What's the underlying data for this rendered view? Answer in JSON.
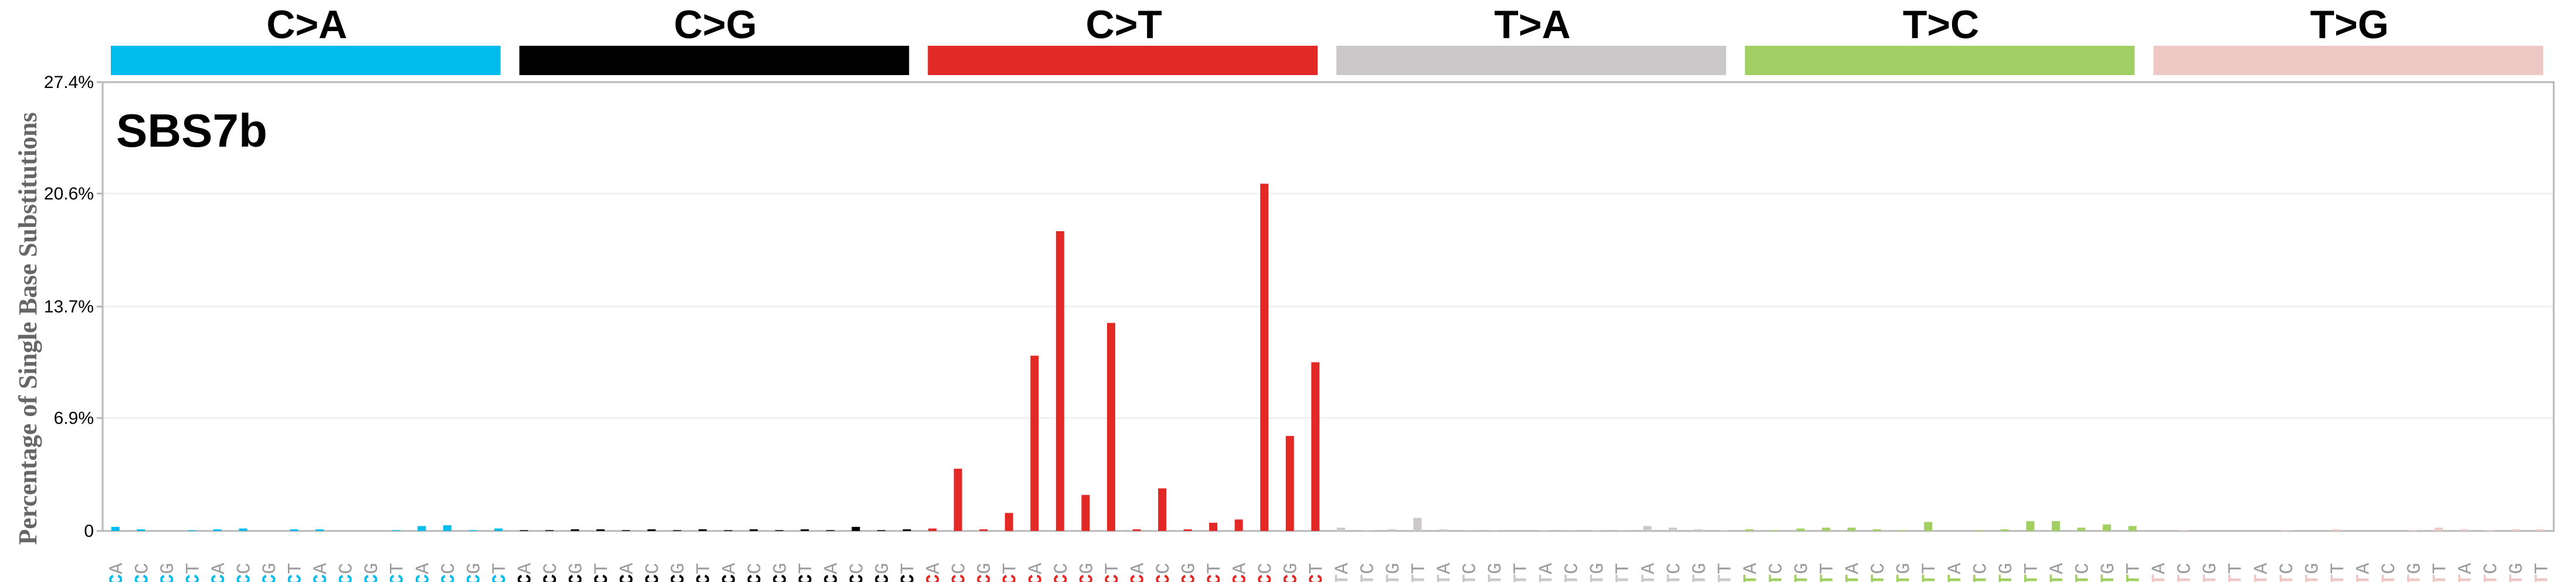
{
  "chart_data": {
    "type": "bar",
    "title": "SBS7b",
    "ylabel": "Percentage of Single Base Substitutions",
    "ylim": [
      0,
      27.4
    ],
    "yticks": [
      {
        "value": 0,
        "label": "0"
      },
      {
        "value": 6.9,
        "label": "6.9%"
      },
      {
        "value": 13.7,
        "label": "13.7%"
      },
      {
        "value": 20.6,
        "label": "20.6%"
      },
      {
        "value": 27.4,
        "label": "27.4%"
      }
    ],
    "grid": true,
    "groups": [
      {
        "name": "C>A",
        "color": "#03bcee",
        "label_color": "#000000",
        "contexts": [
          "ACA",
          "ACC",
          "ACG",
          "ACT",
          "CCA",
          "CCC",
          "CCG",
          "CCT",
          "GCA",
          "GCC",
          "GCG",
          "GCT",
          "TCA",
          "TCC",
          "TCG",
          "TCT"
        ],
        "values": [
          0.25,
          0.1,
          0.0,
          0.05,
          0.1,
          0.15,
          0.0,
          0.1,
          0.1,
          0.0,
          0.0,
          0.05,
          0.3,
          0.35,
          0.05,
          0.15
        ]
      },
      {
        "name": "C>G",
        "color": "#010101",
        "label_color": "#000000",
        "contexts": [
          "ACA",
          "ACC",
          "ACG",
          "ACT",
          "CCA",
          "CCC",
          "CCG",
          "CCT",
          "GCA",
          "GCC",
          "GCG",
          "GCT",
          "TCA",
          "TCC",
          "TCG",
          "TCT"
        ],
        "values": [
          0.05,
          0.05,
          0.1,
          0.1,
          0.05,
          0.1,
          0.05,
          0.1,
          0.05,
          0.1,
          0.05,
          0.1,
          0.05,
          0.25,
          0.05,
          0.1
        ]
      },
      {
        "name": "C>T",
        "color": "#e32926",
        "label_color": "#000000",
        "contexts": [
          "ACA",
          "ACC",
          "ACG",
          "ACT",
          "CCA",
          "CCC",
          "CCG",
          "CCT",
          "GCA",
          "GCC",
          "GCG",
          "GCT",
          "TCA",
          "TCC",
          "TCG",
          "TCT"
        ],
        "values": [
          0.15,
          3.8,
          0.1,
          1.1,
          10.7,
          18.3,
          2.2,
          12.7,
          0.1,
          2.6,
          0.1,
          0.5,
          0.7,
          21.2,
          5.8,
          10.3
        ]
      },
      {
        "name": "T>A",
        "color": "#cac8c9",
        "label_color": "#000000",
        "contexts": [
          "ATA",
          "ATC",
          "ATG",
          "ATT",
          "CTA",
          "CTC",
          "CTG",
          "CTT",
          "GTA",
          "GTC",
          "GTG",
          "GTT",
          "TTA",
          "TTC",
          "TTG",
          "TTT"
        ],
        "values": [
          0.2,
          0.05,
          0.1,
          0.8,
          0.1,
          0.05,
          0.05,
          0.0,
          0.05,
          0.05,
          0.05,
          0.05,
          0.3,
          0.2,
          0.1,
          0.05
        ]
      },
      {
        "name": "T>C",
        "color": "#a1cf64",
        "label_color": "#000000",
        "contexts": [
          "ATA",
          "ATC",
          "ATG",
          "ATT",
          "CTA",
          "CTC",
          "CTG",
          "CTT",
          "GTA",
          "GTC",
          "GTG",
          "GTT",
          "TTA",
          "TTC",
          "TTG",
          "TTT"
        ],
        "values": [
          0.1,
          0.05,
          0.15,
          0.2,
          0.2,
          0.1,
          0.05,
          0.55,
          0.0,
          0.05,
          0.1,
          0.6,
          0.6,
          0.2,
          0.4,
          0.3
        ]
      },
      {
        "name": "T>G",
        "color": "#edc8c5",
        "label_color": "#000000",
        "contexts": [
          "ATA",
          "ATC",
          "ATG",
          "ATT",
          "CTA",
          "CTC",
          "CTG",
          "CTT",
          "GTA",
          "GTC",
          "GTG",
          "GTT",
          "TTA",
          "TTC",
          "TTG",
          "TTT"
        ],
        "values": [
          0.0,
          0.05,
          0.0,
          0.0,
          0.0,
          0.05,
          0.0,
          0.1,
          0.0,
          0.0,
          0.05,
          0.2,
          0.1,
          0.05,
          0.1,
          0.1
        ]
      }
    ]
  }
}
